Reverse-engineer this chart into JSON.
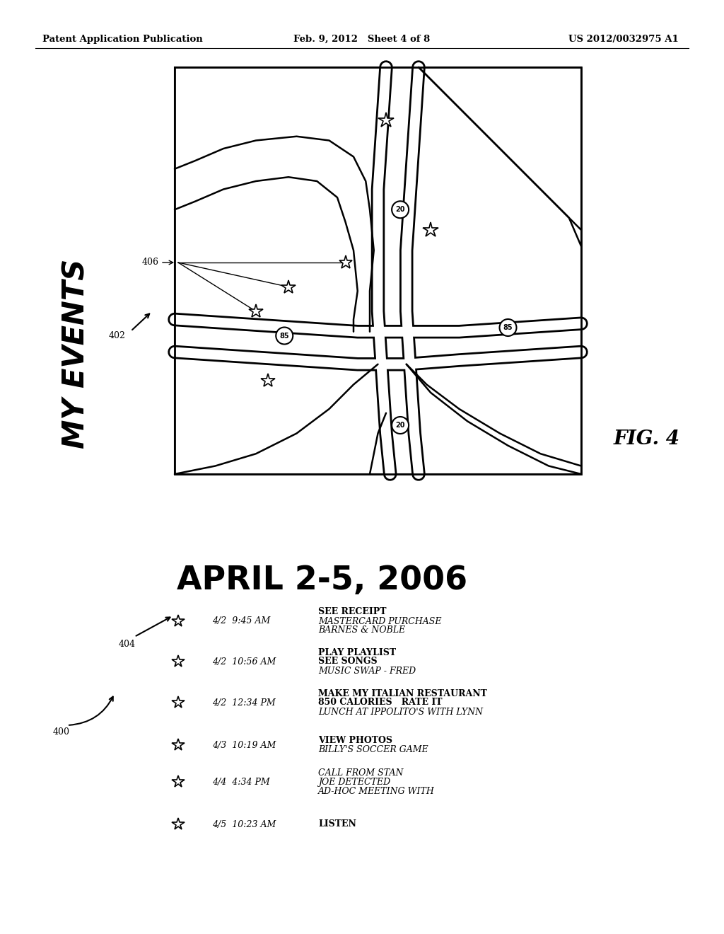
{
  "bg_color": "#ffffff",
  "header_left": "Patent Application Publication",
  "header_center": "Feb. 9, 2012   Sheet 4 of 8",
  "header_right": "US 2012/0032975 A1",
  "fig_label": "FIG. 4",
  "title_text": "MY EVENTS"
}
